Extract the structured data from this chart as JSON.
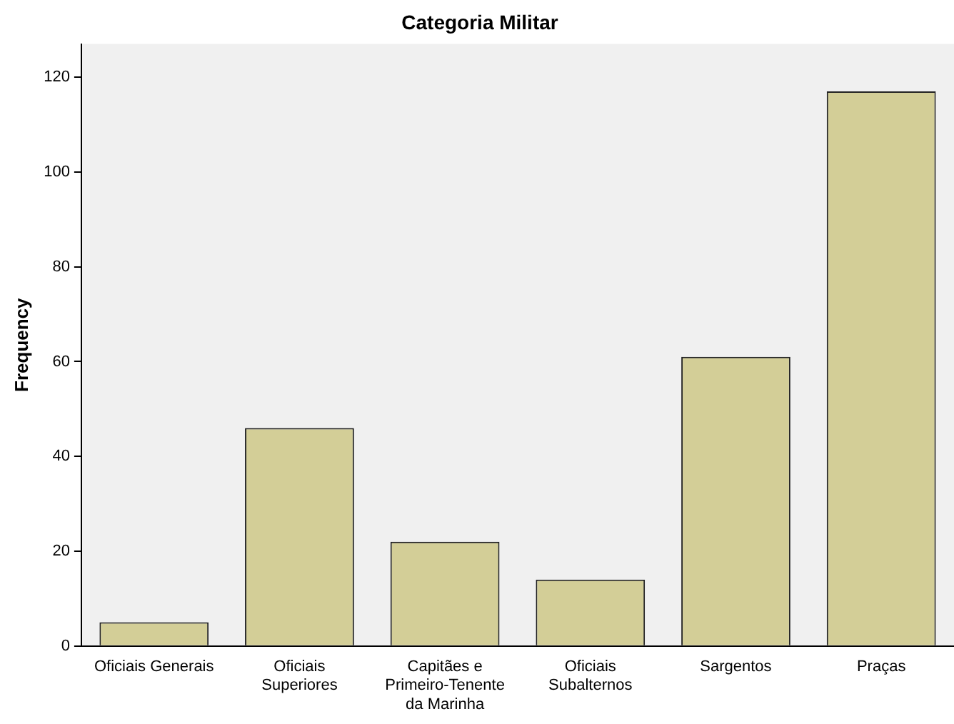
{
  "chart_data": {
    "type": "bar",
    "title": "Categoria Militar",
    "ylabel": "Frequency",
    "categories": [
      "Oficiais Generais",
      "Oficiais Superiores",
      "Capitães e Primeiro-Tenente da Marinha",
      "Oficiais Subalternos",
      "Sargentos",
      "Praças"
    ],
    "values": [
      5,
      46,
      22,
      14,
      61,
      117
    ],
    "color": "#d3ce97",
    "ylim": [
      0,
      127
    ],
    "yticks": [
      0,
      20,
      40,
      60,
      80,
      100,
      120
    ],
    "grid": false,
    "legend": false
  }
}
